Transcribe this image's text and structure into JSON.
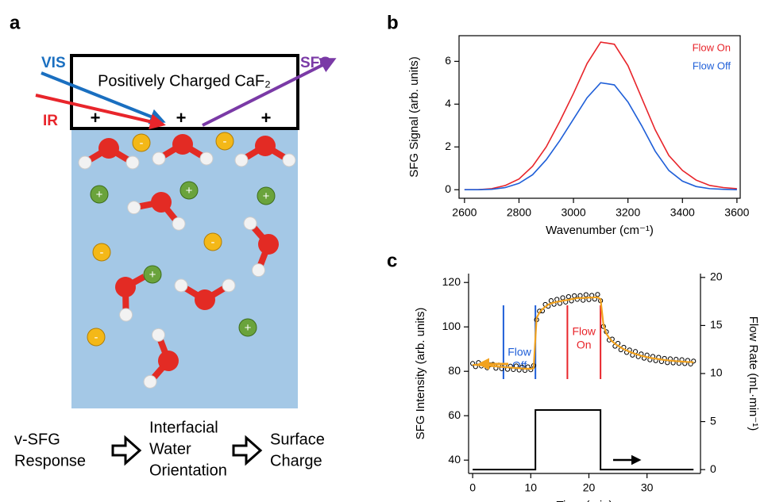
{
  "diagram": {
    "panel_label": "a",
    "crystal_label": "Positively Charged CaF₂",
    "beams": {
      "vis": "VIS",
      "ir": "IR",
      "sfg": "SFG"
    },
    "surface_charge_sign": "+",
    "ion_labels": {
      "cation": "+",
      "anion": "-"
    },
    "flow": [
      [
        "v-SFG",
        "Response"
      ],
      [
        "Interfacial",
        "Water",
        "Orientation"
      ],
      [
        "Surface",
        "Charge"
      ]
    ]
  },
  "chart_data": [
    {
      "panel_label": "b",
      "type": "line",
      "x_label": "Wavenumber (cm⁻¹)",
      "y_label": "SFG Signal (arb. units)",
      "x": [
        2600,
        2650,
        2700,
        2750,
        2800,
        2850,
        2900,
        2950,
        3000,
        3050,
        3100,
        3150,
        3200,
        3250,
        3300,
        3350,
        3400,
        3450,
        3500,
        3550,
        3600
      ],
      "xlim": [
        2580,
        3612
      ],
      "xticks": [
        2600,
        2800,
        3000,
        3200,
        3400,
        3600
      ],
      "ylim": [
        -0.4,
        7.2
      ],
      "yticks": [
        0,
        2,
        4,
        6
      ],
      "legend": "top-right",
      "series": [
        {
          "name": "Flow On",
          "color": "#e8252b",
          "values": [
            0,
            0,
            0.05,
            0.2,
            0.5,
            1.1,
            2.0,
            3.2,
            4.5,
            5.9,
            6.9,
            6.8,
            5.8,
            4.3,
            2.8,
            1.6,
            0.9,
            0.45,
            0.2,
            0.1,
            0.05
          ]
        },
        {
          "name": "Flow Off",
          "color": "#1f5fd8",
          "values": [
            0,
            0,
            0.02,
            0.1,
            0.3,
            0.7,
            1.4,
            2.3,
            3.3,
            4.3,
            5.0,
            4.9,
            4.1,
            3.0,
            1.8,
            0.9,
            0.4,
            0.15,
            0.05,
            0.02,
            0
          ]
        }
      ]
    },
    {
      "panel_label": "c",
      "type": "line",
      "x_label": "Time (min)",
      "y_label": "SFG Intensity (arb. units)",
      "y2_label": "Flow Rate (mL·min⁻¹)",
      "xlim": [
        -0.7,
        39.2
      ],
      "xticks": [
        0,
        10,
        20,
        30
      ],
      "ylim": [
        34,
        124
      ],
      "yticks": [
        40,
        60,
        80,
        100,
        120
      ],
      "y2lim": [
        -0.4,
        20.4
      ],
      "y2ticks": [
        0,
        5,
        10,
        15,
        20
      ],
      "x": [
        0,
        0.5,
        1,
        1.5,
        2,
        2.5,
        3,
        3.5,
        4,
        4.5,
        5,
        5.5,
        6,
        6.5,
        7,
        7.5,
        8,
        8.5,
        9,
        9.5,
        10,
        10.5,
        11,
        11.5,
        12,
        12.5,
        13,
        13.5,
        14,
        14.5,
        15,
        15.5,
        16,
        16.5,
        17,
        17.5,
        18,
        18.5,
        19,
        19.5,
        20,
        20.5,
        21,
        21.5,
        22,
        22.5,
        23,
        23.5,
        24,
        24.5,
        25,
        25.5,
        26,
        26.5,
        27,
        27.5,
        28,
        28.5,
        29,
        29.5,
        30,
        30.5,
        31,
        31.5,
        32,
        32.5,
        33,
        33.5,
        34,
        34.5,
        35,
        35.5,
        36,
        36.5,
        37,
        37.5,
        38
      ],
      "series": [
        {
          "type": "scatter",
          "color": "#000000",
          "values": [
            83.5,
            82.1,
            83.9,
            82.4,
            83.0,
            81.6,
            82.9,
            83.1,
            81.4,
            82.8,
            81.2,
            82.6,
            80.9,
            82.3,
            80.8,
            82.4,
            80.6,
            81.9,
            80.4,
            82.0,
            80.7,
            82.6,
            103.2,
            107.1,
            107.2,
            110.1,
            109.3,
            111.8,
            110.2,
            112.4,
            110.6,
            113.1,
            111.2,
            113.6,
            111.7,
            114.0,
            112.4,
            114.1,
            112.0,
            114.5,
            112.3,
            114.2,
            112.5,
            114.6,
            111.8,
            100.2,
            97.8,
            94.1,
            94.5,
            91.3,
            92.6,
            89.7,
            90.8,
            88.5,
            89.6,
            87.3,
            88.9,
            86.6,
            87.8,
            85.9,
            87.3,
            85.2,
            86.7,
            84.8,
            86.3,
            84.4,
            85.8,
            83.9,
            85.6,
            83.8,
            85.4,
            83.6,
            85.2,
            83.5,
            84.9,
            83.3,
            84.6
          ]
        },
        {
          "type": "line",
          "color": "#f2a21e",
          "values": [
            83.0,
            82.9,
            82.8,
            82.7,
            82.6,
            82.5,
            82.4,
            82.3,
            82.2,
            82.1,
            82.0,
            81.9,
            81.8,
            81.7,
            81.6,
            81.5,
            81.4,
            81.3,
            81.2,
            81.2,
            81.1,
            81.5,
            104,
            106.5,
            108,
            109,
            110,
            110.6,
            111,
            111.3,
            111.5,
            111.8,
            112,
            112.2,
            112.5,
            112.7,
            113,
            113,
            113,
            113.1,
            113.2,
            113.2,
            113.3,
            113.3,
            112.5,
            101,
            97,
            95,
            93.5,
            92.4,
            91.5,
            90.7,
            90,
            89.4,
            88.8,
            88.3,
            87.8,
            87.4,
            87,
            86.7,
            86.4,
            86.1,
            85.9,
            85.7,
            85.5,
            85.3,
            85.1,
            85,
            84.8,
            84.7,
            84.6,
            84.5,
            84.4,
            84.3,
            84.2,
            84.2,
            84.1
          ]
        },
        {
          "type": "step",
          "axis": "y2",
          "color": "#000000",
          "x": [
            0,
            10.8,
            10.8,
            22,
            22,
            38
          ],
          "values": [
            0,
            0,
            6.2,
            6.2,
            0,
            0
          ]
        }
      ],
      "markers": [
        {
          "x": 5.3,
          "color": "#1f5fd8"
        },
        {
          "x": 10.8,
          "color": "#1f5fd8"
        },
        {
          "x": 16.3,
          "color": "#e8252b"
        },
        {
          "x": 22,
          "color": "#e8252b"
        }
      ],
      "annotations": [
        {
          "lines": [
            "Flow",
            "Off"
          ],
          "color": "#1f5fd8"
        },
        {
          "lines": [
            "Flow",
            "On"
          ],
          "color": "#e8252b"
        }
      ]
    }
  ]
}
